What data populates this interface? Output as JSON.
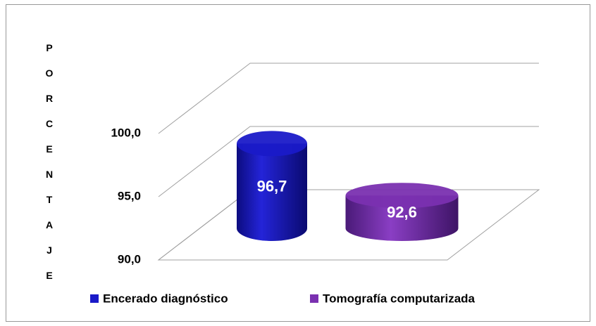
{
  "chart_data": {
    "type": "cylinder",
    "y_label": "PORCENTAJE",
    "ylim": [
      90,
      100
    ],
    "yticks": [
      {
        "value": 90,
        "label": "90,0"
      },
      {
        "value": 95,
        "label": "95,0"
      },
      {
        "value": 100,
        "label": "100,0"
      }
    ],
    "grid": true,
    "legend": "bottom",
    "series": [
      {
        "name": "Encerado diagnóstico",
        "color": "#1a1ac8",
        "values": [
          96.7
        ],
        "value_labels": [
          "96,7"
        ]
      },
      {
        "name": "Tomografía computarizada",
        "color": "#7a30b0",
        "values": [
          92.6
        ],
        "value_labels": [
          "92,6"
        ]
      }
    ]
  }
}
